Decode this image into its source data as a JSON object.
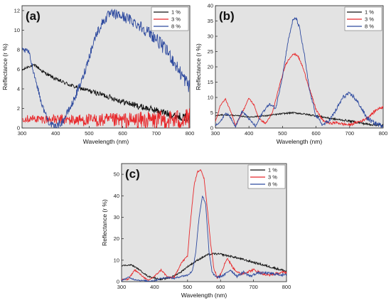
{
  "chart_data": [
    {
      "type": "line",
      "panel_label": "(a)",
      "xlabel": "Wavelength (nm)",
      "ylabel": "Reflectance (r %)",
      "xlim": [
        300,
        800
      ],
      "ylim": [
        0,
        12.5
      ],
      "xticks": [
        300,
        400,
        500,
        600,
        700,
        800
      ],
      "yticks": [
        0,
        2,
        4,
        6,
        8,
        10,
        12
      ],
      "legend_position": "top-right",
      "grid": false,
      "noise": [
        0.12,
        0.35,
        0.25
      ],
      "noise_growth": [
        2.5,
        2.2,
        2.0
      ],
      "series": [
        {
          "name": "1 %",
          "color": "#111111",
          "x": [
            300,
            320,
            340,
            360,
            400,
            450,
            500,
            550,
            600,
            650,
            700,
            750,
            800
          ],
          "y": [
            5.9,
            6.3,
            6.4,
            5.8,
            5.0,
            4.3,
            3.8,
            3.3,
            2.7,
            2.2,
            1.8,
            1.3,
            1.0
          ]
        },
        {
          "name": "3 %",
          "color": "#e8282b",
          "x": [
            300,
            400,
            500,
            600,
            700,
            800
          ],
          "y": [
            1.0,
            0.85,
            0.8,
            0.75,
            0.8,
            0.9
          ]
        },
        {
          "name": "8 %",
          "color": "#2e4a9f",
          "x": [
            300,
            320,
            340,
            360,
            380,
            395,
            420,
            450,
            480,
            500,
            520,
            540,
            560,
            580,
            600,
            620,
            650,
            680,
            700,
            720,
            740,
            760,
            780,
            800
          ],
          "y": [
            8.0,
            7.8,
            5.0,
            2.3,
            0.6,
            0.1,
            0.6,
            2.5,
            5.0,
            7.3,
            9.5,
            10.8,
            11.6,
            11.6,
            11.4,
            11.1,
            10.5,
            9.7,
            9.1,
            8.3,
            7.5,
            6.3,
            5.2,
            4.2
          ]
        }
      ]
    },
    {
      "type": "line",
      "panel_label": "(b)",
      "xlabel": "Wavelength (nm)",
      "ylabel": "Reflectance (r %)",
      "xlim": [
        300,
        800
      ],
      "ylim": [
        0,
        40
      ],
      "xticks": [
        300,
        400,
        500,
        600,
        700,
        800
      ],
      "yticks": [
        0,
        5,
        10,
        15,
        20,
        25,
        30,
        35,
        40
      ],
      "legend_position": "top-right",
      "grid": false,
      "noise": [
        0.15,
        0.2,
        0.3
      ],
      "noise_growth": [
        1.5,
        1.5,
        1.5
      ],
      "series": [
        {
          "name": "1 %",
          "color": "#111111",
          "x": [
            300,
            320,
            350,
            400,
            450,
            500,
            530,
            550,
            600,
            650,
            700,
            750,
            800
          ],
          "y": [
            4.0,
            4.3,
            4.2,
            3.6,
            4.0,
            4.7,
            5.0,
            4.8,
            4.0,
            3.0,
            2.3,
            1.3,
            0.8
          ]
        },
        {
          "name": "3 %",
          "color": "#e8282b",
          "x": [
            300,
            315,
            330,
            345,
            360,
            380,
            400,
            415,
            430,
            450,
            470,
            490,
            510,
            530,
            545,
            560,
            580,
            600,
            620,
            640,
            660,
            680,
            700,
            720,
            740,
            760,
            780,
            800
          ],
          "y": [
            2.0,
            7.5,
            9.5,
            5.5,
            1.0,
            5.0,
            9.8,
            7.5,
            3.0,
            1.5,
            5.0,
            13.5,
            21.0,
            24.2,
            23.8,
            20.0,
            13.0,
            6.0,
            2.5,
            1.5,
            1.8,
            1.3,
            1.0,
            1.8,
            2.5,
            4.0,
            6.0,
            7.0
          ]
        },
        {
          "name": "8 %",
          "color": "#2e4a9f",
          "x": [
            300,
            315,
            330,
            345,
            360,
            380,
            400,
            420,
            440,
            460,
            480,
            500,
            515,
            530,
            540,
            550,
            565,
            580,
            600,
            620,
            640,
            660,
            680,
            695,
            710,
            730,
            750,
            770,
            790,
            800
          ],
          "y": [
            1.0,
            2.0,
            5.0,
            3.5,
            0.5,
            5.5,
            3.0,
            0.5,
            5.0,
            7.8,
            6.5,
            17.0,
            27.5,
            35.0,
            36.0,
            33.0,
            24.0,
            12.5,
            4.0,
            1.0,
            2.5,
            6.0,
            10.0,
            11.2,
            10.5,
            7.5,
            3.5,
            1.8,
            1.0,
            1.0
          ]
        }
      ]
    },
    {
      "type": "line",
      "panel_label": "(c)",
      "xlabel": "Wavelength (nm)",
      "ylabel": "Reflectance (r %)",
      "xlim": [
        300,
        800
      ],
      "ylim": [
        0,
        55
      ],
      "xticks": [
        300,
        400,
        500,
        600,
        700,
        800
      ],
      "yticks": [
        0,
        10,
        20,
        30,
        40,
        50
      ],
      "legend_position": "top-right",
      "grid": false,
      "noise": [
        0.25,
        0.3,
        0.3
      ],
      "noise_growth": [
        1.2,
        1.2,
        1.2
      ],
      "series": [
        {
          "name": "1 %",
          "color": "#111111",
          "x": [
            300,
            330,
            350,
            380,
            420,
            450,
            480,
            500,
            530,
            560,
            580,
            600,
            640,
            700,
            760,
            800
          ],
          "y": [
            7.5,
            7.8,
            6.0,
            2.5,
            1.0,
            2.0,
            4.5,
            7.0,
            10.0,
            12.5,
            13.0,
            12.8,
            11.5,
            9.0,
            6.5,
            4.8
          ]
        },
        {
          "name": "3 %",
          "color": "#e8282b",
          "x": [
            300,
            320,
            340,
            360,
            380,
            400,
            420,
            440,
            460,
            480,
            500,
            510,
            520,
            530,
            540,
            550,
            560,
            570,
            580,
            590,
            600,
            620,
            640,
            660,
            680,
            700,
            740,
            780,
            800
          ],
          "y": [
            1.0,
            1.0,
            5.5,
            3.0,
            0.5,
            2.5,
            5.5,
            2.0,
            2.0,
            8.5,
            12.0,
            30.0,
            45.0,
            51.0,
            52.5,
            48.0,
            34.0,
            18.0,
            6.0,
            2.0,
            3.5,
            11.0,
            6.0,
            3.5,
            4.5,
            5.5,
            3.0,
            4.0,
            4.5
          ]
        },
        {
          "name": "8 %",
          "color": "#2e4a9f",
          "x": [
            300,
            320,
            340,
            360,
            380,
            400,
            420,
            440,
            460,
            480,
            500,
            515,
            525,
            535,
            545,
            555,
            565,
            575,
            590,
            610,
            630,
            650,
            670,
            690,
            710,
            740,
            770,
            800
          ],
          "y": [
            0.5,
            2.0,
            1.0,
            0.5,
            0.3,
            0.5,
            1.5,
            2.0,
            1.5,
            2.5,
            3.0,
            5.0,
            14.0,
            30.0,
            40.0,
            36.0,
            14.0,
            4.0,
            2.0,
            3.0,
            5.5,
            2.5,
            4.5,
            2.5,
            4.0,
            4.0,
            3.5,
            3.0
          ]
        }
      ]
    }
  ]
}
